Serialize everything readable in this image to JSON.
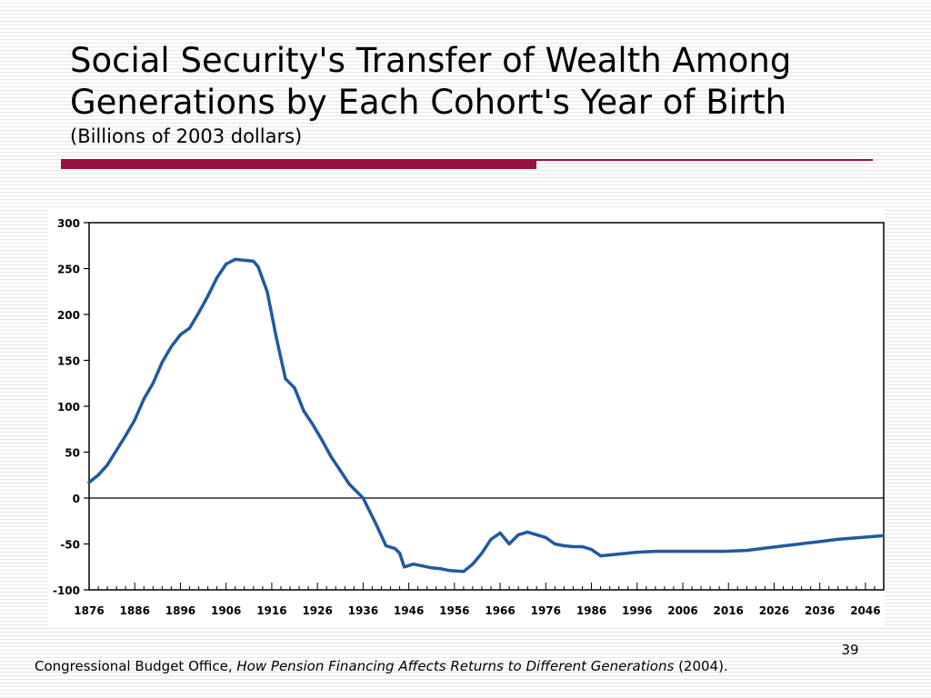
{
  "slide": {
    "title_line1": "Social Security's Transfer of Wealth Among",
    "title_line2": "Generations by Each Cohort's Year of Birth",
    "subtitle": "(Billions of 2003 dollars)",
    "slide_number": "39",
    "source_prefix": "Congressional Budget Office, ",
    "source_title": "How Pension Financing Affects Returns to Different Generations",
    "source_suffix": " (2004).",
    "accent_color": "#99103a"
  },
  "chart_data": {
    "type": "line",
    "title": "",
    "xlabel": "",
    "ylabel": "",
    "xlim": [
      1876,
      2050
    ],
    "ylim": [
      -100,
      300
    ],
    "grid": false,
    "line_color": "#1f5aa0",
    "yticks": [
      300,
      250,
      200,
      150,
      100,
      50,
      0,
      -50,
      -100
    ],
    "xtick_labels": [
      "1876",
      "1886",
      "1896",
      "1906",
      "1916",
      "1926",
      "1936",
      "1946",
      "1956",
      "1966",
      "1976",
      "1986",
      "1996",
      "2006",
      "2016",
      "2026",
      "2036",
      "2046"
    ],
    "series": [
      {
        "x": [
          1876,
          1878,
          1880,
          1882,
          1884,
          1886,
          1888,
          1890,
          1892,
          1894,
          1896,
          1898,
          1900,
          1902,
          1904,
          1906,
          1908,
          1910,
          1912,
          1913,
          1915,
          1917,
          1919,
          1921,
          1923,
          1925,
          1927,
          1929,
          1931,
          1933,
          1935,
          1936,
          1937,
          1939,
          1941,
          1943,
          1944,
          1945,
          1947,
          1949,
          1951,
          1953,
          1955,
          1958,
          1960,
          1962,
          1964,
          1966,
          1968,
          1970,
          1972,
          1974,
          1976,
          1978,
          1980,
          1982,
          1984,
          1986,
          1988,
          1990,
          1992,
          1994,
          1996,
          2000,
          2005,
          2010,
          2015,
          2020,
          2025,
          2030,
          2035,
          2040,
          2045,
          2050
        ],
        "y": [
          17,
          25,
          36,
          52,
          68,
          85,
          108,
          125,
          148,
          165,
          178,
          185,
          202,
          220,
          240,
          255,
          260,
          259,
          258,
          252,
          225,
          175,
          130,
          120,
          95,
          80,
          63,
          45,
          30,
          15,
          5,
          0,
          -10,
          -30,
          -52,
          -55,
          -60,
          -75,
          -72,
          -74,
          -76,
          -77,
          -79,
          -80,
          -72,
          -60,
          -45,
          -38,
          -50,
          -40,
          -37,
          -40,
          -43,
          -50,
          -52,
          -53,
          -53,
          -56,
          -63,
          -62,
          -61,
          -60,
          -59,
          -58,
          -58,
          -58,
          -58,
          -57,
          -54,
          -51,
          -48,
          -45,
          -43,
          -41
        ]
      }
    ]
  }
}
